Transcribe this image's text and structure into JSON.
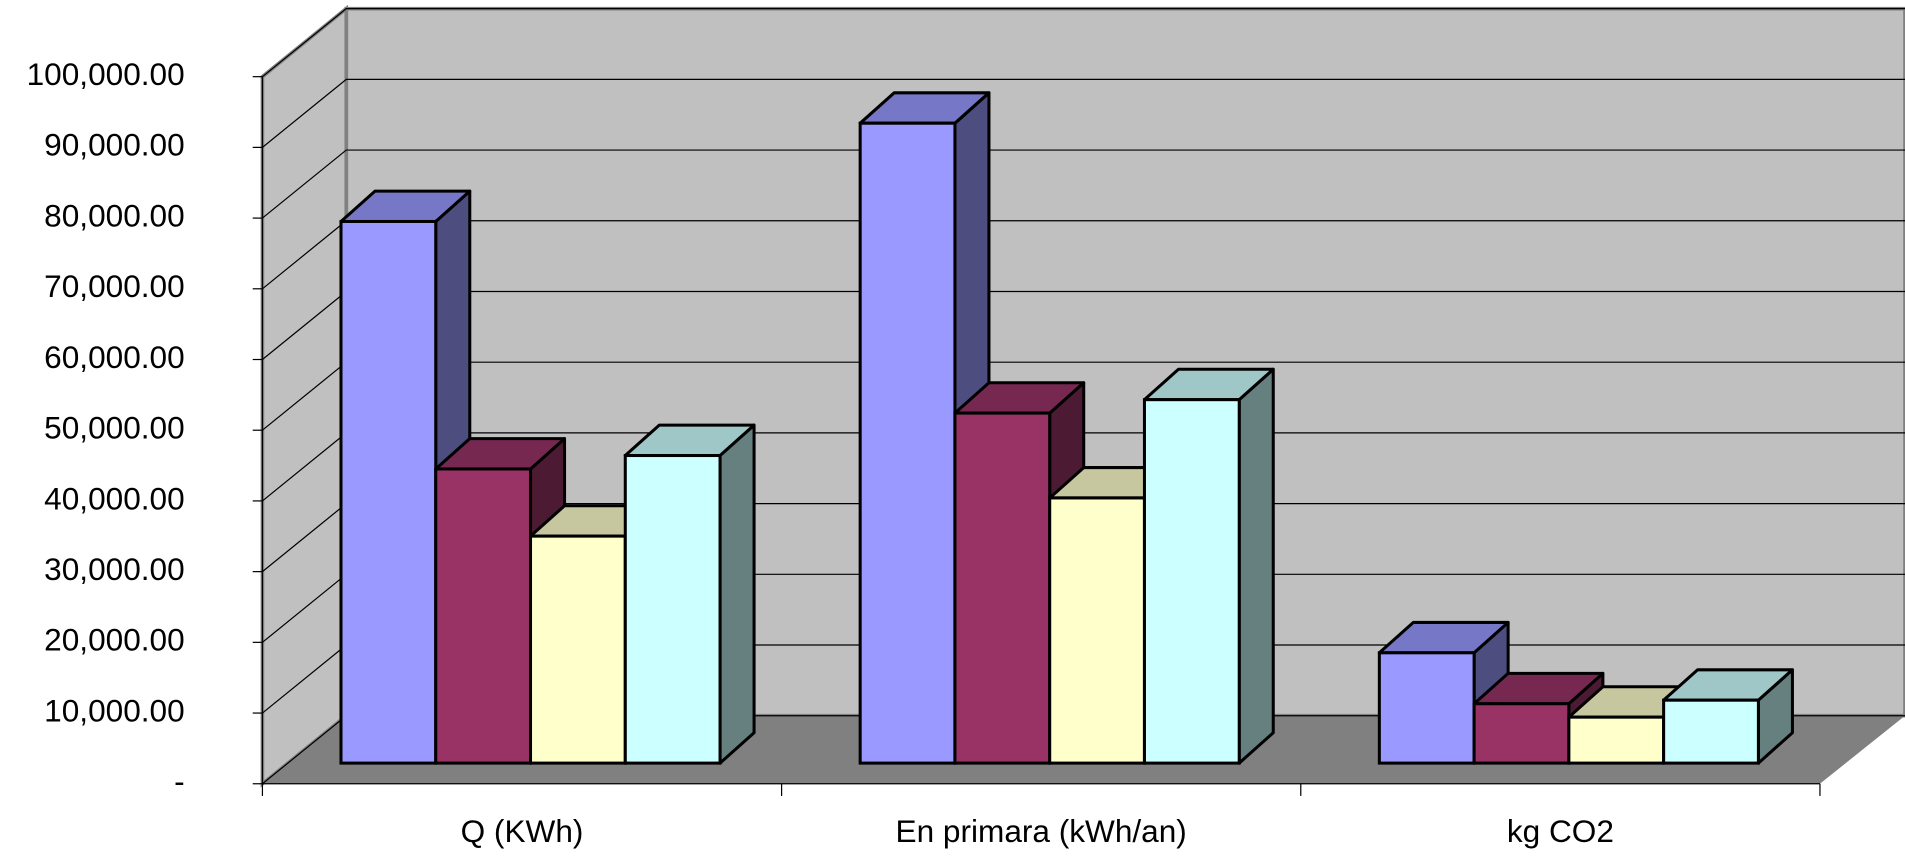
{
  "chart_data": {
    "type": "bar3d",
    "categories": [
      "Q (KWh)",
      "En primara (kWh/an)",
      "kg CO2"
    ],
    "series": [
      {
        "color": "#9999ff",
        "values": [
          76600,
          90500,
          15600
        ]
      },
      {
        "color": "#993366",
        "values": [
          41600,
          49500,
          8400
        ]
      },
      {
        "color": "#ffffcc",
        "values": [
          32100,
          37500,
          6500
        ]
      },
      {
        "color": "#ccffff",
        "values": [
          43500,
          51400,
          8900
        ]
      }
    ],
    "ylim": [
      0,
      100000
    ],
    "yticks": [
      {
        "value": 0,
        "label": "-"
      },
      {
        "value": 10000,
        "label": "10,000.00"
      },
      {
        "value": 20000,
        "label": "20,000.00"
      },
      {
        "value": 30000,
        "label": "30,000.00"
      },
      {
        "value": 40000,
        "label": "40,000.00"
      },
      {
        "value": 50000,
        "label": "50,000.00"
      },
      {
        "value": 60000,
        "label": "60,000.00"
      },
      {
        "value": 70000,
        "label": "70,000.00"
      },
      {
        "value": 80000,
        "label": "80,000.00"
      },
      {
        "value": 90000,
        "label": "90,000.00"
      },
      {
        "value": 100000,
        "label": "100,000.00"
      }
    ],
    "grid": true
  }
}
